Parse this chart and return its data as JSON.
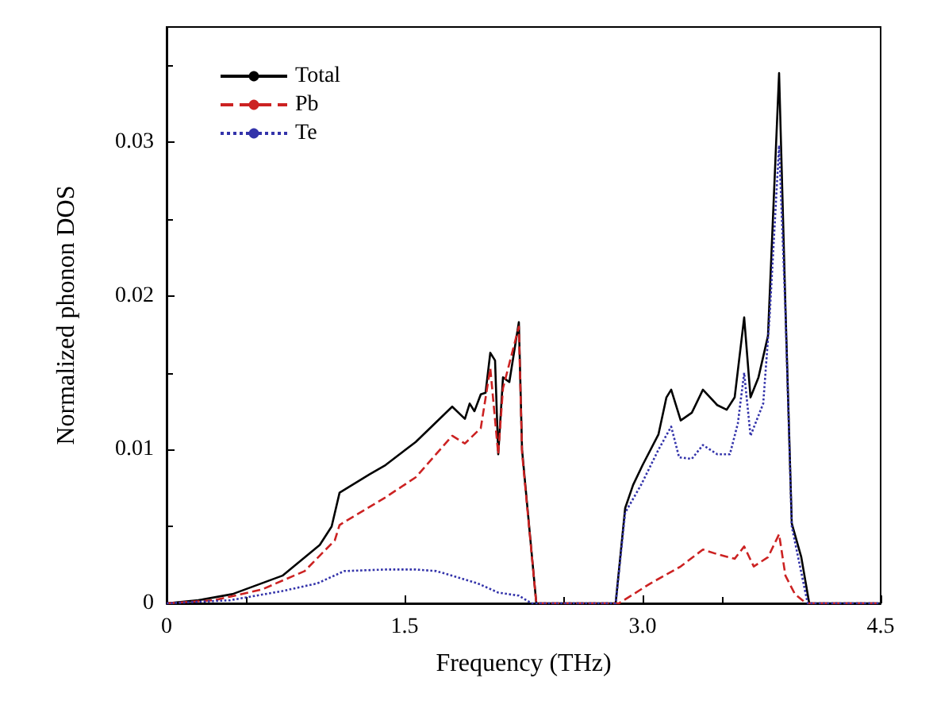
{
  "chart_data": {
    "type": "line",
    "xlabel": "Frequency (THz)",
    "ylabel": "Normalized phonon DOS",
    "xlim": [
      0,
      4.5
    ],
    "ylim": [
      0,
      0.0375
    ],
    "xticks": [
      0,
      1.5,
      {
        "value": 3,
        "label": "3.0"
      },
      4.5
    ],
    "yticks": [
      0,
      0.01,
      0.02,
      0.03
    ],
    "grid": false,
    "legend": "top left",
    "marker": "none",
    "series": [
      {
        "name": "Total",
        "color": "#000000",
        "line_style": "solid",
        "x": [
          0,
          0.2,
          0.415,
          0.73,
          0.965,
          1.04,
          1.09,
          1.28,
          1.38,
          1.57,
          1.8,
          1.88,
          1.91,
          1.94,
          1.98,
          2.01,
          2.04,
          2.07,
          2.09,
          2.12,
          2.16,
          2.22,
          2.24,
          2.33,
          2.5,
          2.8,
          2.83,
          2.89,
          2.94,
          3.0,
          3.1,
          3.15,
          3.18,
          3.24,
          3.31,
          3.38,
          3.47,
          3.53,
          3.58,
          3.64,
          3.68,
          3.73,
          3.79,
          3.86,
          3.9,
          3.94,
          4.0,
          4.05,
          4.5
        ],
        "values": [
          0,
          0.0002,
          0.0006,
          0.0018,
          0.0038,
          0.005,
          0.0072,
          0.0084,
          0.009,
          0.0105,
          0.0128,
          0.012,
          0.013,
          0.0125,
          0.0136,
          0.0137,
          0.0163,
          0.0158,
          0.0097,
          0.0147,
          0.0144,
          0.0183,
          0.01,
          0,
          0,
          0,
          0,
          0.0062,
          0.0077,
          0.009,
          0.011,
          0.0134,
          0.0139,
          0.0119,
          0.0124,
          0.0139,
          0.0129,
          0.0126,
          0.0134,
          0.0186,
          0.0134,
          0.0147,
          0.0174,
          0.0345,
          0.0193,
          0.0052,
          0.003,
          0,
          0
        ]
      },
      {
        "name": "Pb",
        "color": "#cc2222",
        "line_style": "dashed",
        "x": [
          0,
          0.3,
          0.6,
          0.87,
          1.06,
          1.09,
          1.38,
          1.57,
          1.8,
          1.88,
          1.98,
          2.04,
          2.09,
          2.12,
          2.22,
          2.24,
          2.33,
          2.5,
          2.85,
          3.05,
          3.24,
          3.38,
          3.47,
          3.58,
          3.64,
          3.7,
          3.79,
          3.86,
          3.9,
          3.96,
          4.03,
          4.5
        ],
        "values": [
          0,
          0.0002,
          0.0009,
          0.0021,
          0.0041,
          0.0051,
          0.0069,
          0.0082,
          0.0109,
          0.0104,
          0.0114,
          0.0153,
          0.0097,
          0.014,
          0.018,
          0.0098,
          0,
          0,
          0,
          0.0013,
          0.0024,
          0.0035,
          0.0032,
          0.0029,
          0.0037,
          0.0024,
          0.003,
          0.0045,
          0.0018,
          0.0006,
          0,
          0
        ]
      },
      {
        "name": "Te",
        "color": "#3333aa",
        "line_style": "dotted",
        "x": [
          0,
          0.4,
          0.73,
          0.95,
          1.12,
          1.38,
          1.57,
          1.7,
          1.96,
          2.09,
          2.22,
          2.3,
          2.5,
          2.8,
          2.83,
          2.89,
          2.99,
          3.1,
          3.18,
          3.23,
          3.31,
          3.38,
          3.47,
          3.55,
          3.6,
          3.64,
          3.68,
          3.76,
          3.8,
          3.86,
          3.9,
          3.94,
          4.04,
          4.5
        ],
        "values": [
          0,
          0.0002,
          0.0008,
          0.0013,
          0.0021,
          0.0022,
          0.0022,
          0.0021,
          0.0013,
          0.0007,
          0.0005,
          0,
          0,
          0,
          0,
          0.0059,
          0.0077,
          0.01,
          0.0115,
          0.0095,
          0.0094,
          0.0103,
          0.0097,
          0.0097,
          0.0117,
          0.015,
          0.0109,
          0.013,
          0.0186,
          0.0298,
          0.019,
          0.005,
          0,
          0
        ]
      }
    ]
  }
}
